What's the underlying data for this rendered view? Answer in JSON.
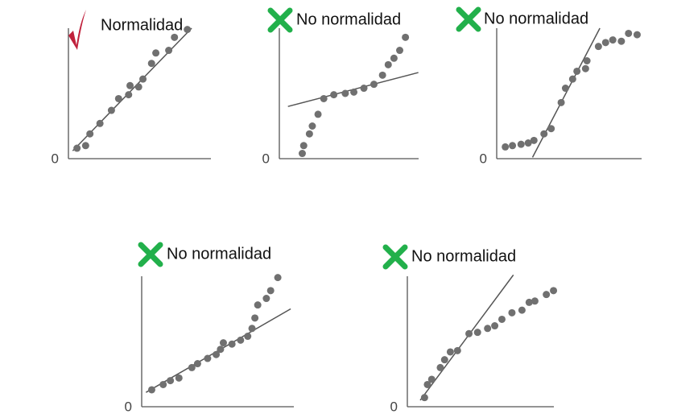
{
  "chart_data": [
    {
      "type": "scatter",
      "title": "Normalidad",
      "marker": "check",
      "marker_color": "#c0213c",
      "color": "#707070",
      "line_color": "#555555",
      "x": [
        6,
        12,
        15,
        22,
        30,
        35,
        42,
        43,
        49,
        52,
        58,
        61,
        70,
        74,
        83
      ],
      "y": [
        8,
        10,
        19,
        27,
        37,
        46,
        49,
        56,
        55,
        61,
        73,
        81,
        83,
        93,
        99
      ],
      "fit_line": {
        "x": [
          3,
          86
        ],
        "y": [
          6,
          100
        ]
      },
      "xlim": [
        0,
        100
      ],
      "ylim": [
        0,
        100
      ],
      "yticks": [
        0
      ]
    },
    {
      "type": "scatter",
      "title": "No normalidad",
      "marker": "cross",
      "marker_color": "#22b04b",
      "color": "#707070",
      "line_color": "#555555",
      "x": [
        16,
        17,
        21,
        23,
        27,
        31,
        38,
        46,
        52,
        59,
        66,
        72,
        76,
        80,
        84,
        88
      ],
      "y": [
        4,
        10,
        19,
        25,
        34,
        46,
        49,
        50,
        51,
        54,
        57,
        64,
        72,
        77,
        83,
        93
      ],
      "fit_line": {
        "x": [
          6,
          97
        ],
        "y": [
          40,
          66
        ]
      },
      "xlim": [
        0,
        100
      ],
      "ylim": [
        0,
        100
      ],
      "yticks": [
        0
      ]
    },
    {
      "type": "scatter",
      "title": "No normalidad",
      "marker": "cross",
      "marker_color": "#22b04b",
      "color": "#707070",
      "line_color": "#555555",
      "x": [
        6,
        11,
        17,
        22,
        26,
        33,
        38,
        45,
        48,
        53,
        56,
        62,
        63,
        71,
        76,
        81,
        87,
        92,
        98
      ],
      "y": [
        9,
        10,
        11,
        12,
        14,
        19,
        23,
        43,
        54,
        61,
        67,
        69,
        75,
        86,
        89,
        91,
        90,
        96,
        95
      ],
      "fit_line": {
        "x": [
          25,
          72
        ],
        "y": [
          1,
          100
        ]
      },
      "xlim": [
        0,
        100
      ],
      "ylim": [
        0,
        100
      ],
      "yticks": [
        0
      ]
    },
    {
      "type": "scatter",
      "title": "No normalidad",
      "marker": "cross",
      "marker_color": "#22b04b",
      "color": "#707070",
      "line_color": "#555555",
      "x": [
        7,
        15,
        20,
        26,
        35,
        39,
        46,
        52,
        55,
        57,
        63,
        69,
        74,
        77,
        79,
        81,
        87,
        90,
        95
      ],
      "y": [
        13,
        17,
        20,
        22,
        30,
        33,
        37,
        40,
        44,
        49,
        48,
        51,
        54,
        60,
        68,
        78,
        83,
        89,
        99
      ],
      "fit_line": {
        "x": [
          3,
          104
        ],
        "y": [
          11,
          75
        ]
      },
      "xlim": [
        0,
        100
      ],
      "ylim": [
        0,
        100
      ],
      "yticks": [
        0
      ]
    },
    {
      "type": "scatter",
      "title": "No normalidad",
      "marker": "cross",
      "marker_color": "#22b04b",
      "color": "#707070",
      "line_color": "#555555",
      "x": [
        12,
        14,
        17,
        23,
        26,
        30,
        35,
        43,
        49,
        56,
        61,
        66,
        73,
        80,
        85,
        89,
        97,
        102
      ],
      "y": [
        7,
        17,
        21,
        30,
        36,
        42,
        43,
        56,
        57,
        60,
        62,
        67,
        72,
        74,
        80,
        81,
        86,
        89
      ],
      "fit_line": {
        "x": [
          9,
          74
        ],
        "y": [
          5,
          101
        ]
      },
      "xlim": [
        0,
        100
      ],
      "ylim": [
        0,
        100
      ],
      "yticks": [
        0
      ]
    }
  ]
}
